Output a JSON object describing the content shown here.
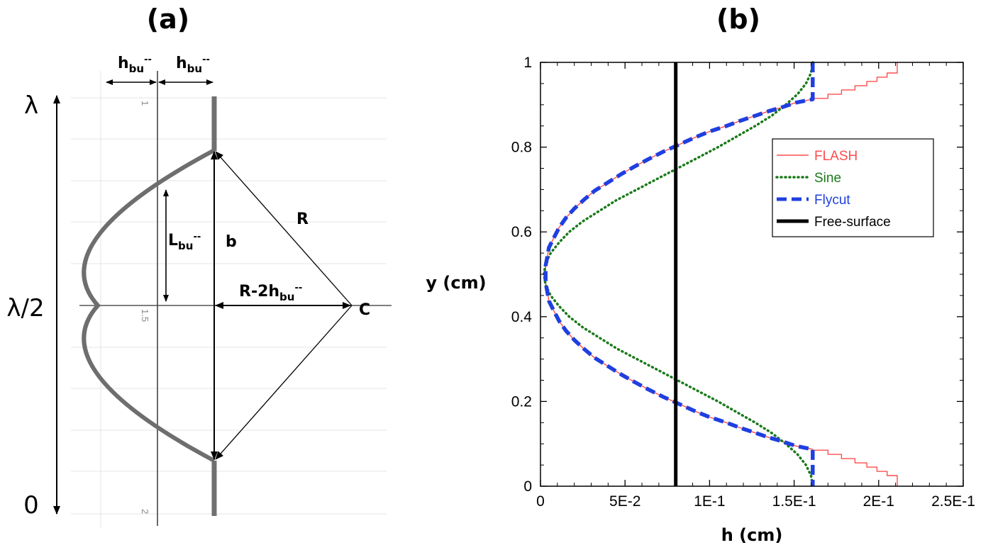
{
  "panel_a": {
    "label": "(a)",
    "lambda": "λ",
    "lambda_half": "λ/2",
    "zero": "0",
    "h_main": "h",
    "h_sub": "bu",
    "h_sup": "--",
    "l_main": "L",
    "l_sub": "bu",
    "l_sup": "--",
    "b_label": "b",
    "r_label": "R",
    "rm_main": "R-2h",
    "rm_sub": "bu",
    "rm_sup": "--",
    "c_label": "C",
    "faint_ticks": [
      "1",
      "1.5",
      "2"
    ]
  },
  "panel_b": {
    "label": "(b)"
  },
  "chart_data": {
    "type": "line",
    "title": "",
    "xlabel": "h (cm)",
    "ylabel": "y (cm)",
    "xlim": [
      0,
      0.25
    ],
    "ylim": [
      0,
      1
    ],
    "xticks": [
      0,
      0.05,
      0.1,
      0.15,
      0.2,
      0.25
    ],
    "xtick_labels": [
      "0",
      "5E-2",
      "1E-1",
      "1.5E-1",
      "2E-1",
      "2.5E-1"
    ],
    "yticks": [
      0,
      0.2,
      0.4,
      0.6,
      0.8,
      1
    ],
    "ytick_labels": [
      "0",
      "0.2",
      "0.4",
      "0.6",
      "0.8",
      "1"
    ],
    "grid": false,
    "legend_position": "top-right",
    "series": [
      {
        "name": "FLASH",
        "color": "#ff4d4d",
        "style": "thin-stepped",
        "points": [
          [
            0.211,
            1.0
          ],
          [
            0.211,
            0.975
          ],
          [
            0.205,
            0.975
          ],
          [
            0.205,
            0.965
          ],
          [
            0.199,
            0.965
          ],
          [
            0.199,
            0.955
          ],
          [
            0.193,
            0.955
          ],
          [
            0.193,
            0.945
          ],
          [
            0.186,
            0.945
          ],
          [
            0.186,
            0.935
          ],
          [
            0.178,
            0.935
          ],
          [
            0.178,
            0.925
          ],
          [
            0.17,
            0.925
          ],
          [
            0.17,
            0.915
          ],
          [
            0.161,
            0.915
          ],
          [
            0.161,
            0.913
          ],
          [
            0.151,
            0.905
          ],
          [
            0.142,
            0.893
          ],
          [
            0.135,
            0.885
          ],
          [
            0.127,
            0.874
          ],
          [
            0.118,
            0.862
          ],
          [
            0.11,
            0.85
          ],
          [
            0.1,
            0.837
          ],
          [
            0.092,
            0.824
          ],
          [
            0.082,
            0.806
          ],
          [
            0.073,
            0.79
          ],
          [
            0.064,
            0.772
          ],
          [
            0.056,
            0.755
          ],
          [
            0.048,
            0.737
          ],
          [
            0.04,
            0.717
          ],
          [
            0.032,
            0.697
          ],
          [
            0.026,
            0.677
          ],
          [
            0.02,
            0.655
          ],
          [
            0.015,
            0.633
          ],
          [
            0.011,
            0.61
          ],
          [
            0.008,
            0.587
          ],
          [
            0.005,
            0.563
          ],
          [
            0.004,
            0.54
          ],
          [
            0.003,
            0.52
          ],
          [
            0.003,
            0.5
          ],
          [
            0.003,
            0.48
          ],
          [
            0.004,
            0.46
          ],
          [
            0.005,
            0.437
          ],
          [
            0.008,
            0.413
          ],
          [
            0.011,
            0.39
          ],
          [
            0.015,
            0.367
          ],
          [
            0.02,
            0.345
          ],
          [
            0.026,
            0.323
          ],
          [
            0.032,
            0.303
          ],
          [
            0.04,
            0.283
          ],
          [
            0.048,
            0.263
          ],
          [
            0.056,
            0.245
          ],
          [
            0.064,
            0.228
          ],
          [
            0.073,
            0.21
          ],
          [
            0.082,
            0.194
          ],
          [
            0.092,
            0.176
          ],
          [
            0.1,
            0.163
          ],
          [
            0.11,
            0.15
          ],
          [
            0.118,
            0.138
          ],
          [
            0.127,
            0.126
          ],
          [
            0.135,
            0.115
          ],
          [
            0.142,
            0.107
          ],
          [
            0.151,
            0.095
          ],
          [
            0.161,
            0.087
          ],
          [
            0.161,
            0.085
          ],
          [
            0.17,
            0.085
          ],
          [
            0.17,
            0.075
          ],
          [
            0.178,
            0.075
          ],
          [
            0.178,
            0.065
          ],
          [
            0.186,
            0.065
          ],
          [
            0.186,
            0.055
          ],
          [
            0.193,
            0.055
          ],
          [
            0.193,
            0.045
          ],
          [
            0.199,
            0.045
          ],
          [
            0.199,
            0.035
          ],
          [
            0.205,
            0.035
          ],
          [
            0.205,
            0.025
          ],
          [
            0.211,
            0.025
          ],
          [
            0.211,
            0.0
          ]
        ]
      },
      {
        "name": "Sine",
        "color": "#1a7a1a",
        "style": "dotted",
        "points": [
          [
            0.161,
            1.0
          ],
          [
            0.16,
            0.975
          ],
          [
            0.157,
            0.95
          ],
          [
            0.152,
            0.925
          ],
          [
            0.145,
            0.9
          ],
          [
            0.137,
            0.875
          ],
          [
            0.127,
            0.85
          ],
          [
            0.116,
            0.825
          ],
          [
            0.105,
            0.8
          ],
          [
            0.093,
            0.775
          ],
          [
            0.081,
            0.75
          ],
          [
            0.069,
            0.725
          ],
          [
            0.057,
            0.7
          ],
          [
            0.045,
            0.675
          ],
          [
            0.035,
            0.65
          ],
          [
            0.025,
            0.625
          ],
          [
            0.017,
            0.6
          ],
          [
            0.011,
            0.575
          ],
          [
            0.006,
            0.55
          ],
          [
            0.003,
            0.525
          ],
          [
            0.002,
            0.5
          ],
          [
            0.003,
            0.475
          ],
          [
            0.006,
            0.45
          ],
          [
            0.011,
            0.425
          ],
          [
            0.017,
            0.4
          ],
          [
            0.025,
            0.375
          ],
          [
            0.035,
            0.35
          ],
          [
            0.045,
            0.325
          ],
          [
            0.057,
            0.3
          ],
          [
            0.069,
            0.275
          ],
          [
            0.081,
            0.25
          ],
          [
            0.093,
            0.225
          ],
          [
            0.105,
            0.2
          ],
          [
            0.116,
            0.175
          ],
          [
            0.127,
            0.15
          ],
          [
            0.137,
            0.125
          ],
          [
            0.145,
            0.1
          ],
          [
            0.152,
            0.075
          ],
          [
            0.157,
            0.05
          ],
          [
            0.16,
            0.025
          ],
          [
            0.161,
            0.0
          ]
        ]
      },
      {
        "name": "Flycut",
        "color": "#1f3fe0",
        "style": "dashed",
        "points": [
          [
            0.161,
            1.0
          ],
          [
            0.161,
            0.913
          ],
          [
            0.151,
            0.905
          ],
          [
            0.142,
            0.893
          ],
          [
            0.135,
            0.885
          ],
          [
            0.127,
            0.874
          ],
          [
            0.118,
            0.862
          ],
          [
            0.11,
            0.85
          ],
          [
            0.1,
            0.837
          ],
          [
            0.092,
            0.824
          ],
          [
            0.082,
            0.806
          ],
          [
            0.073,
            0.79
          ],
          [
            0.064,
            0.772
          ],
          [
            0.056,
            0.755
          ],
          [
            0.048,
            0.737
          ],
          [
            0.04,
            0.717
          ],
          [
            0.032,
            0.697
          ],
          [
            0.026,
            0.677
          ],
          [
            0.02,
            0.655
          ],
          [
            0.015,
            0.633
          ],
          [
            0.011,
            0.61
          ],
          [
            0.008,
            0.587
          ],
          [
            0.005,
            0.563
          ],
          [
            0.004,
            0.54
          ],
          [
            0.003,
            0.52
          ],
          [
            0.003,
            0.5
          ],
          [
            0.003,
            0.48
          ],
          [
            0.004,
            0.46
          ],
          [
            0.005,
            0.437
          ],
          [
            0.008,
            0.413
          ],
          [
            0.011,
            0.39
          ],
          [
            0.015,
            0.367
          ],
          [
            0.02,
            0.345
          ],
          [
            0.026,
            0.323
          ],
          [
            0.032,
            0.303
          ],
          [
            0.04,
            0.283
          ],
          [
            0.048,
            0.263
          ],
          [
            0.056,
            0.245
          ],
          [
            0.064,
            0.228
          ],
          [
            0.073,
            0.21
          ],
          [
            0.082,
            0.194
          ],
          [
            0.092,
            0.176
          ],
          [
            0.1,
            0.163
          ],
          [
            0.11,
            0.15
          ],
          [
            0.118,
            0.138
          ],
          [
            0.127,
            0.126
          ],
          [
            0.135,
            0.115
          ],
          [
            0.142,
            0.107
          ],
          [
            0.151,
            0.095
          ],
          [
            0.161,
            0.087
          ],
          [
            0.161,
            0.0
          ]
        ]
      },
      {
        "name": "Free-surface",
        "color": "#000000",
        "style": "solid-thick",
        "points": [
          [
            0.08,
            0.0
          ],
          [
            0.08,
            1.0
          ]
        ]
      }
    ]
  }
}
